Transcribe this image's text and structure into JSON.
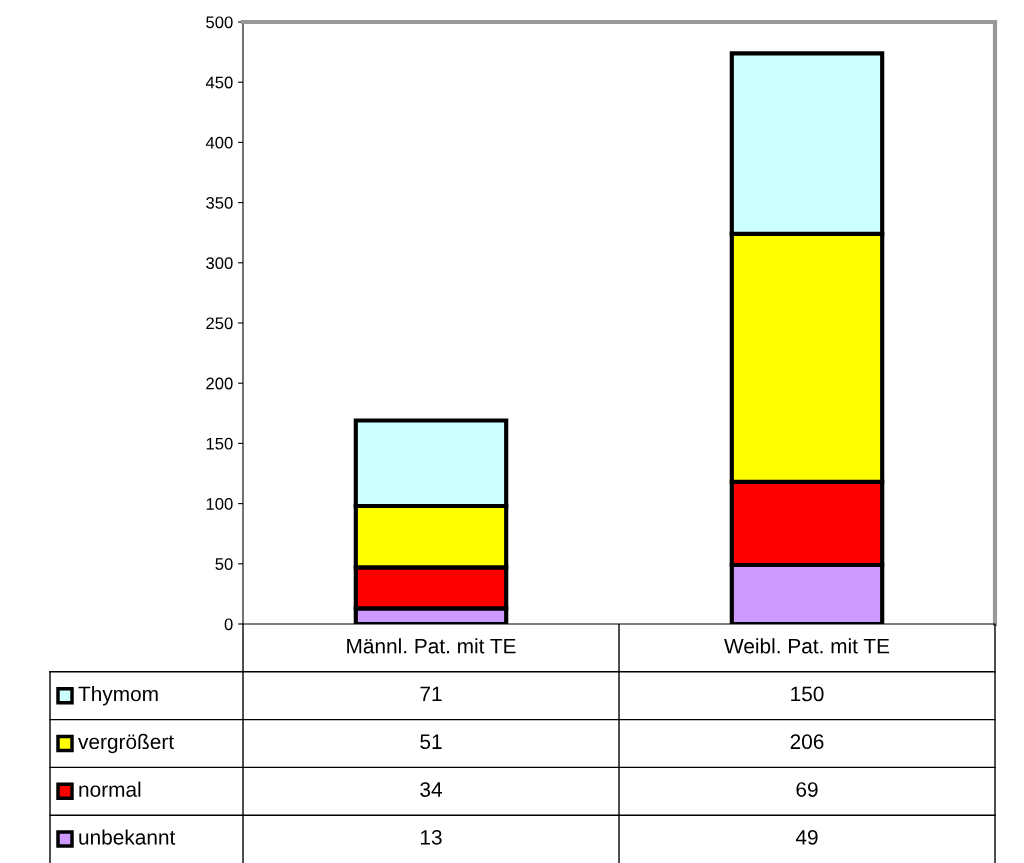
{
  "chart_data": {
    "type": "bar",
    "stacked": true,
    "categories": [
      "Männl. Pat. mit TE",
      "Weibl. Pat. mit TE"
    ],
    "series": [
      {
        "name": "unbekannt",
        "color": "#cc99ff",
        "values": [
          13,
          49
        ]
      },
      {
        "name": "normal",
        "color": "#ff0000",
        "values": [
          34,
          69
        ]
      },
      {
        "name": "vergrößert",
        "color": "#ffff00",
        "values": [
          51,
          206
        ]
      },
      {
        "name": "Thymom",
        "color": "#ccffff",
        "values": [
          71,
          150
        ]
      }
    ],
    "ylim": [
      0,
      500
    ],
    "yticks": [
      0,
      50,
      100,
      150,
      200,
      250,
      300,
      350,
      400,
      450,
      500
    ],
    "grid": false,
    "legend": "bottom",
    "data_labels": true,
    "tick_labels": "y"
  }
}
